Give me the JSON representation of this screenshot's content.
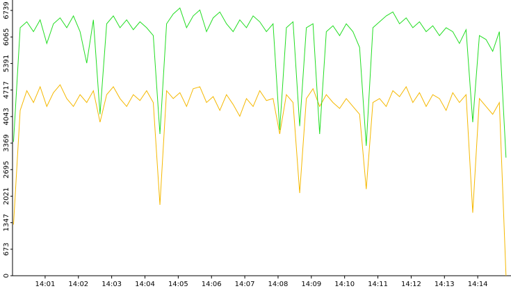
{
  "chart_data": {
    "type": "line",
    "x": [
      0.05,
      0.25,
      0.45,
      0.65,
      0.85,
      1.05,
      1.25,
      1.45,
      1.65,
      1.85,
      2.05,
      2.25,
      2.45,
      2.65,
      2.85,
      3.05,
      3.25,
      3.45,
      3.65,
      3.85,
      4.05,
      4.25,
      4.45,
      4.65,
      4.85,
      5.05,
      5.25,
      5.45,
      5.65,
      5.85,
      6.05,
      6.25,
      6.45,
      6.65,
      6.85,
      7.05,
      7.25,
      7.45,
      7.65,
      7.85,
      8.05,
      8.25,
      8.45,
      8.65,
      8.85,
      9.05,
      9.25,
      9.45,
      9.65,
      9.85,
      10.05,
      10.25,
      10.45,
      10.65,
      10.85,
      11.05,
      11.25,
      11.45,
      11.65,
      11.85,
      12.05,
      12.25,
      12.45,
      12.65,
      12.85,
      13.05,
      13.25,
      13.45,
      13.65,
      13.85,
      14.05,
      14.25,
      14.45,
      14.65,
      14.85
    ],
    "series": [
      {
        "color": "#f5b800",
        "values": [
          1300,
          4200,
          4700,
          4400,
          4800,
          4300,
          4650,
          4850,
          4500,
          4300,
          4600,
          4400,
          4700,
          3900,
          4600,
          4800,
          4500,
          4300,
          4600,
          4450,
          4700,
          4400,
          1800,
          4700,
          4500,
          4650,
          4300,
          4750,
          4800,
          4400,
          4550,
          4200,
          4600,
          4350,
          4050,
          4500,
          4300,
          4700,
          4450,
          4500,
          3600,
          4600,
          4400,
          2100,
          4500,
          4750,
          4300,
          4600,
          4400,
          4250,
          4500,
          4300,
          4100,
          2200,
          4400,
          4500,
          4300,
          4700,
          4550,
          4800,
          4400,
          4650,
          4300,
          4600,
          4500,
          4200,
          4650,
          4400,
          4600,
          1600,
          4500,
          4300,
          4100,
          4400,
          0
        ]
      },
      {
        "color": "#22dd22",
        "values": [
          3400,
          6300,
          6450,
          6200,
          6500,
          5900,
          6400,
          6550,
          6300,
          6600,
          6200,
          5400,
          6500,
          4100,
          6400,
          6600,
          6300,
          6500,
          6250,
          6450,
          6300,
          6100,
          3600,
          6400,
          6650,
          6800,
          6300,
          6600,
          6750,
          6200,
          6550,
          6700,
          6400,
          6200,
          6500,
          6300,
          6600,
          6450,
          6200,
          6400,
          3700,
          6300,
          6450,
          3800,
          6300,
          6400,
          3600,
          6200,
          6350,
          6100,
          6400,
          6200,
          5800,
          3300,
          6300,
          6450,
          6600,
          6700,
          6400,
          6550,
          6300,
          6450,
          6200,
          6350,
          6100,
          6300,
          6200,
          5900,
          6250,
          3900,
          6100,
          6000,
          5700,
          6200,
          3000
        ]
      }
    ],
    "xlim": [
      0.02,
      15.0
    ],
    "xticks": [
      {
        "value": 1,
        "label": "14:01"
      },
      {
        "value": 2,
        "label": "14:02"
      },
      {
        "value": 3,
        "label": "14:03"
      },
      {
        "value": 4,
        "label": "14:04"
      },
      {
        "value": 5,
        "label": "14:05"
      },
      {
        "value": 6,
        "label": "14:06"
      },
      {
        "value": 7,
        "label": "14:07"
      },
      {
        "value": 8,
        "label": "14:08"
      },
      {
        "value": 9,
        "label": "14:09"
      },
      {
        "value": 10,
        "label": "14:10"
      },
      {
        "value": 11,
        "label": "14:11"
      },
      {
        "value": 12,
        "label": "14:12"
      },
      {
        "value": 13,
        "label": "14:13"
      },
      {
        "value": 14,
        "label": "14:14"
      }
    ],
    "ylim": [
      0,
      7004
    ],
    "yticks": [
      0,
      673,
      1347,
      2021,
      2695,
      3369,
      4043,
      4717,
      5391,
      6065,
      6739
    ]
  }
}
